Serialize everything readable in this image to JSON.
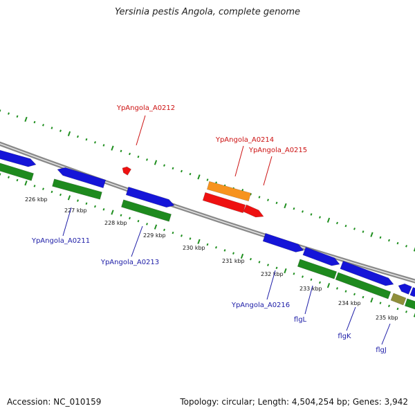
{
  "title": "Yersinia pestis Angola, complete genome",
  "footer": {
    "accession": "Accession: NC_010159",
    "summary": "Topology: circular; Length: 4,504,254 bp; Genes: 3,942"
  },
  "colors": {
    "backbone": "#8a8a8a",
    "forward_cds": "#1515d8",
    "reverse_cds": "#1e8a1e",
    "highlight_orange": "#f7931e",
    "highlight_red": "#ee1111",
    "tick": "#1f8f1f",
    "label_blue": "#1a1aa6",
    "label_red": "#cc1111"
  },
  "ticks": [
    "226 kbp",
    "227 kbp",
    "228 kbp",
    "229 kbp",
    "230 kbp",
    "231 kbp",
    "232 kbp",
    "233 kbp",
    "234 kbp",
    "235 kbp"
  ],
  "gene_labels": [
    {
      "text": "YpAngola_A0212",
      "color": "red"
    },
    {
      "text": "YpAngola_A0214",
      "color": "red"
    },
    {
      "text": "YpAngola_A0215",
      "color": "red"
    },
    {
      "text": "YpAngola_A0211",
      "color": "blue"
    },
    {
      "text": "YpAngola_A0213",
      "color": "blue"
    },
    {
      "text": "YpAngola_A0216",
      "color": "blue"
    },
    {
      "text": "flgL",
      "color": "blue"
    },
    {
      "text": "flgK",
      "color": "blue"
    },
    {
      "text": "flgJ",
      "color": "blue"
    }
  ]
}
